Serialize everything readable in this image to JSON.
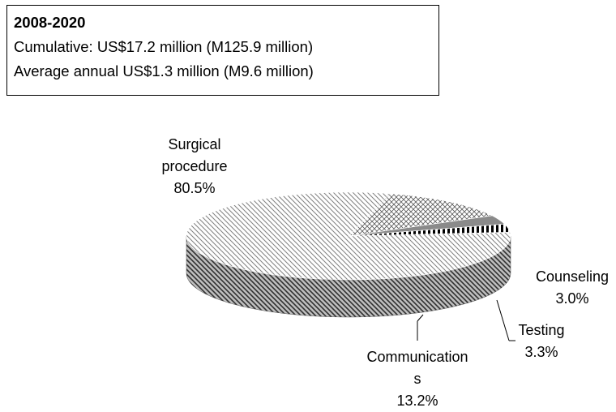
{
  "chart_data": {
    "type": "pie",
    "title": "2008-2020",
    "notes": [
      "Cumulative: US$17.2 million (M125.9 million)",
      "Average annual US$1.3 million (M9.6 million)"
    ],
    "categories": [
      "Surgical procedure",
      "Communications",
      "Testing",
      "Counseling"
    ],
    "values": [
      80.5,
      13.2,
      3.3,
      3.0
    ],
    "value_labels": [
      "80.5%",
      "13.2%",
      "3.3%",
      "3.0%"
    ],
    "colors": [
      "#808080",
      "#5a5a5a",
      "#8a8a8a",
      "#000000"
    ]
  }
}
